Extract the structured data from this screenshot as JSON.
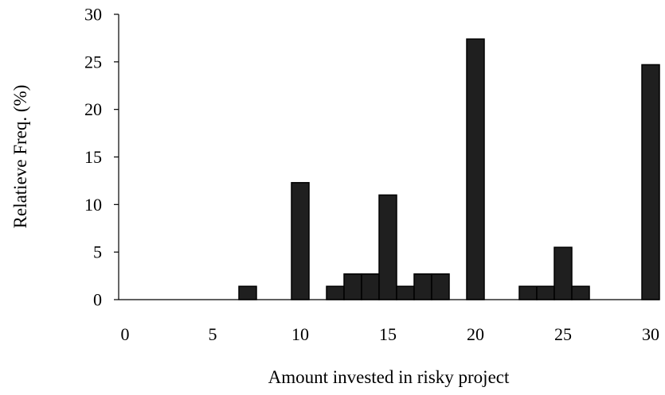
{
  "chart_data": {
    "type": "bar",
    "title": "",
    "xlabel": "Amount invested in risky project",
    "ylabel": "Relatieve Freq. (%)",
    "xlim": [
      0,
      30
    ],
    "ylim": [
      0,
      30
    ],
    "xticks": [
      "0",
      "5",
      "10",
      "15",
      "20",
      "25",
      "30"
    ],
    "yticks": [
      "0",
      "5",
      "10",
      "15",
      "20",
      "25",
      "30"
    ],
    "grid": false,
    "bar_color": "#1f1f1f",
    "x": [
      7,
      10,
      12,
      13,
      14,
      15,
      16,
      17,
      18,
      20,
      23,
      24,
      25,
      26,
      30
    ],
    "values": [
      1.4,
      12.3,
      1.4,
      2.7,
      2.7,
      11.0,
      1.4,
      2.7,
      2.7,
      27.4,
      1.4,
      1.4,
      5.5,
      1.4,
      24.7
    ]
  }
}
